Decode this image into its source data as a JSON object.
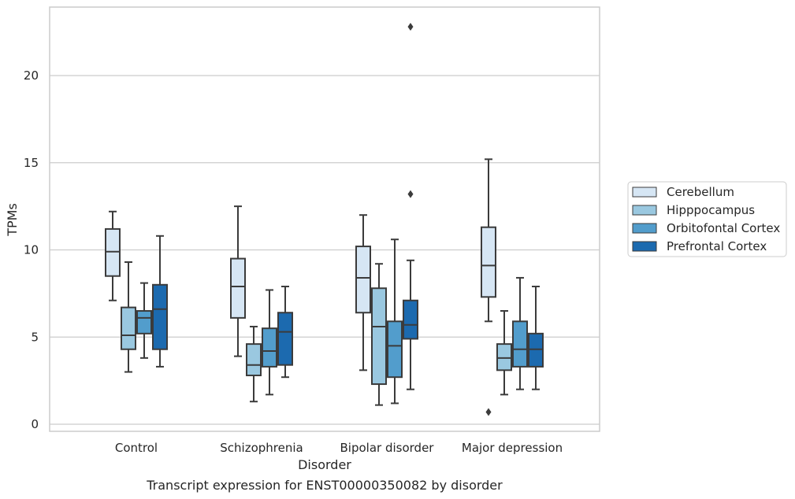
{
  "chart_data": {
    "type": "box",
    "xlabel": "Disorder",
    "ylabel": "TPMs",
    "caption": "Transcript expression for ENST00000350082 by disorder",
    "ylim": [
      -0.4,
      23.9
    ],
    "yticks": [
      0,
      5,
      10,
      15,
      20
    ],
    "categories": [
      "Control",
      "Schizophrenia",
      "Bipolar disorder",
      "Major depression"
    ],
    "grid": "horizontal",
    "legend_position": "right",
    "series": [
      {
        "name": "Cerebellum",
        "color": "#d6e6f4",
        "boxes": [
          {
            "whisker_low": 7.1,
            "q1": 8.5,
            "median": 9.9,
            "q3": 11.2,
            "whisker_high": 12.2,
            "outliers": []
          },
          {
            "whisker_low": 3.9,
            "q1": 6.1,
            "median": 7.9,
            "q3": 9.5,
            "whisker_high": 12.5,
            "outliers": []
          },
          {
            "whisker_low": 3.1,
            "q1": 6.4,
            "median": 8.4,
            "q3": 10.2,
            "whisker_high": 12.0,
            "outliers": []
          },
          {
            "whisker_low": 5.9,
            "q1": 7.3,
            "median": 9.1,
            "q3": 11.3,
            "whisker_high": 15.2,
            "outliers": [
              0.7
            ]
          }
        ]
      },
      {
        "name": "Hipppocampus",
        "color": "#9ac8e0",
        "boxes": [
          {
            "whisker_low": 3.0,
            "q1": 4.3,
            "median": 5.1,
            "q3": 6.7,
            "whisker_high": 9.3,
            "outliers": []
          },
          {
            "whisker_low": 1.3,
            "q1": 2.8,
            "median": 3.4,
            "q3": 4.6,
            "whisker_high": 5.6,
            "outliers": []
          },
          {
            "whisker_low": 1.1,
            "q1": 2.3,
            "median": 5.6,
            "q3": 7.8,
            "whisker_high": 9.2,
            "outliers": []
          },
          {
            "whisker_low": 1.7,
            "q1": 3.1,
            "median": 3.8,
            "q3": 4.6,
            "whisker_high": 6.5,
            "outliers": []
          }
        ]
      },
      {
        "name": "Orbitofontal Cortex",
        "color": "#529dcc",
        "boxes": [
          {
            "whisker_low": 3.8,
            "q1": 5.2,
            "median": 6.1,
            "q3": 6.5,
            "whisker_high": 8.1,
            "outliers": []
          },
          {
            "whisker_low": 1.7,
            "q1": 3.3,
            "median": 4.2,
            "q3": 5.5,
            "whisker_high": 7.7,
            "outliers": []
          },
          {
            "whisker_low": 1.2,
            "q1": 2.7,
            "median": 4.5,
            "q3": 5.9,
            "whisker_high": 10.6,
            "outliers": []
          },
          {
            "whisker_low": 2.0,
            "q1": 3.3,
            "median": 4.3,
            "q3": 5.9,
            "whisker_high": 8.4,
            "outliers": []
          }
        ]
      },
      {
        "name": "Prefrontal Cortex",
        "color": "#1c6aaf",
        "boxes": [
          {
            "whisker_low": 3.3,
            "q1": 4.3,
            "median": 6.6,
            "q3": 8.0,
            "whisker_high": 10.8,
            "outliers": []
          },
          {
            "whisker_low": 2.7,
            "q1": 3.4,
            "median": 5.3,
            "q3": 6.4,
            "whisker_high": 7.9,
            "outliers": []
          },
          {
            "whisker_low": 2.0,
            "q1": 4.9,
            "median": 5.7,
            "q3": 7.1,
            "whisker_high": 9.4,
            "outliers": [
              13.2,
              22.8
            ]
          },
          {
            "whisker_low": 2.0,
            "q1": 3.3,
            "median": 4.3,
            "q3": 5.2,
            "whisker_high": 7.9,
            "outliers": []
          }
        ]
      }
    ]
  }
}
